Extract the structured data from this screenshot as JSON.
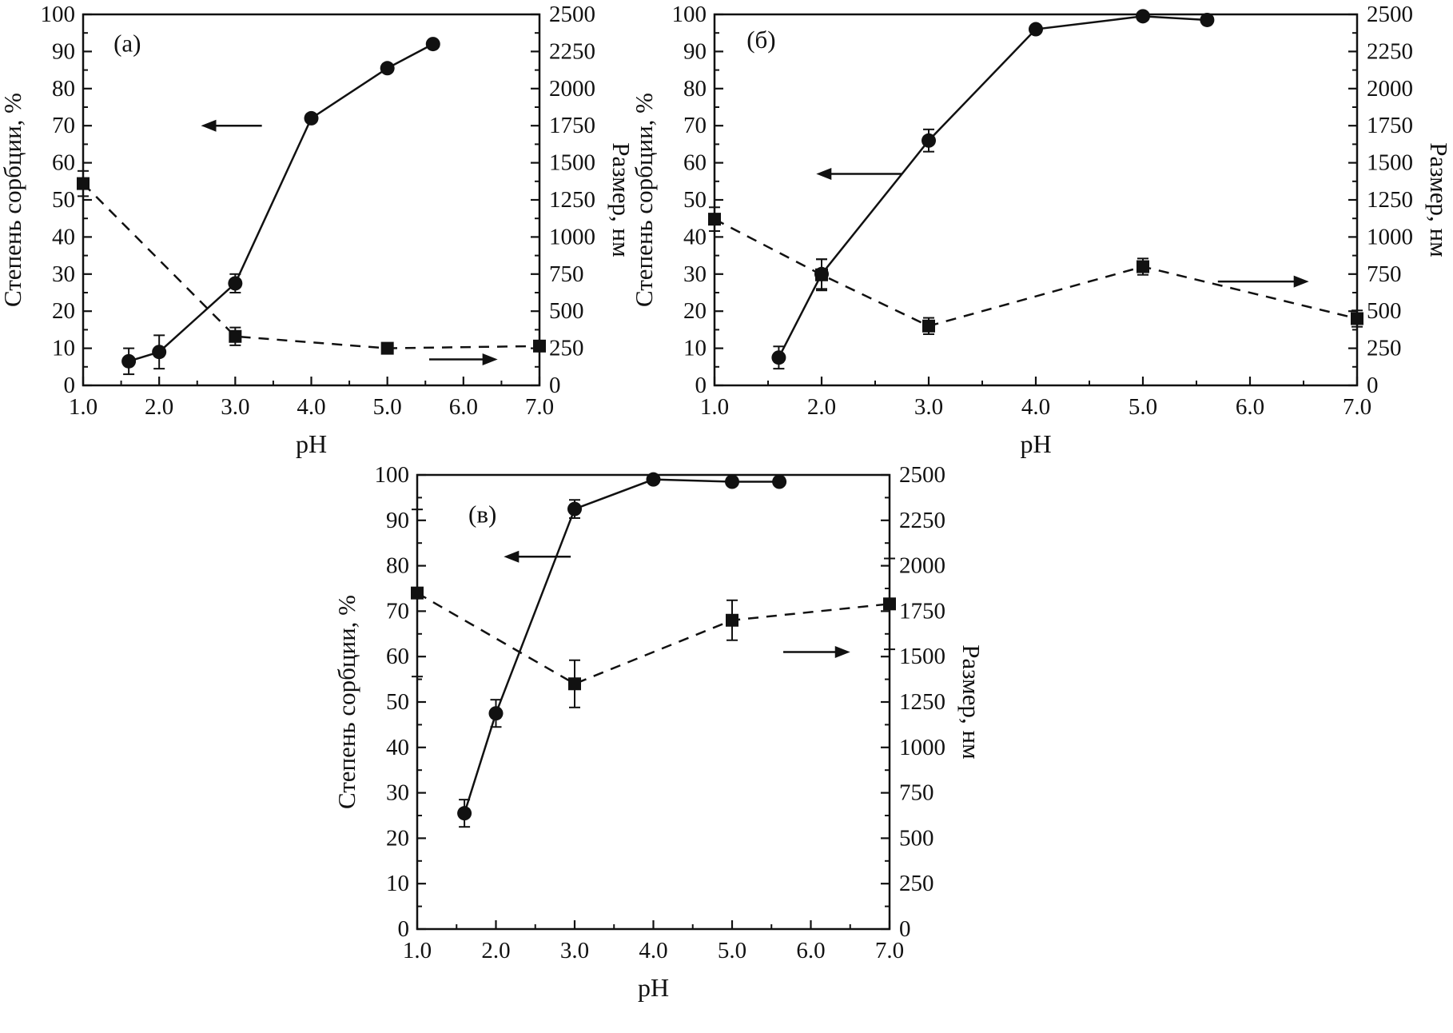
{
  "figure": {
    "background": "#ffffff",
    "ink": "#111111"
  },
  "chart_data": [
    {
      "id": "a",
      "type": "line",
      "panel_label": "(а)",
      "panel_label_pos": {
        "x": 1.4,
        "y": 90
      },
      "xlabel": "pH",
      "ylabel_left": "Степень сорбции, %",
      "ylabel_right": "Размер, нм",
      "xlim": [
        1.0,
        7.0
      ],
      "ylim_left": [
        0,
        100
      ],
      "ylim_right": [
        0,
        2500
      ],
      "grid": false,
      "xticks": {
        "values": [
          1,
          2,
          3,
          4,
          5,
          6,
          7
        ],
        "labels": [
          "1.0",
          "2.0",
          "3.0",
          "4.0",
          "5.0",
          "6.0",
          "7.0"
        ]
      },
      "yticks_left": {
        "values": [
          0,
          10,
          20,
          30,
          40,
          50,
          60,
          70,
          80,
          90,
          100
        ],
        "labels": [
          "0",
          "10",
          "20",
          "30",
          "40",
          "50",
          "60",
          "70",
          "80",
          "90",
          "100"
        ]
      },
      "yticks_right": {
        "values": [
          0,
          250,
          500,
          750,
          1000,
          1250,
          1500,
          1750,
          2000,
          2250,
          2500
        ],
        "labels": [
          "0",
          "250",
          "500",
          "750",
          "1000",
          "1250",
          "1500",
          "1750",
          "2000",
          "2250",
          "2500"
        ]
      },
      "series": [
        {
          "name": "particle-size",
          "axis": "right",
          "marker": "square",
          "line": "dashed",
          "x": [
            1.0,
            3.0,
            5.0,
            7.0
          ],
          "y": [
            1360,
            330,
            250,
            265
          ],
          "yerr": [
            85,
            60,
            30,
            30
          ]
        },
        {
          "name": "sorption-degree",
          "axis": "left",
          "marker": "circle",
          "line": "solid",
          "x": [
            1.6,
            2.0,
            3.0,
            4.0,
            5.0,
            5.6
          ],
          "y": [
            6.5,
            9,
            27.5,
            72,
            85.5,
            92
          ],
          "yerr": [
            3.5,
            4.5,
            2.5,
            0,
            0,
            0
          ]
        }
      ],
      "arrows": [
        {
          "name": "left-series-arrow",
          "x_tail": 3.35,
          "x_head": 2.55,
          "y": 70
        },
        {
          "name": "right-series-arrow",
          "x_tail": 5.55,
          "x_head": 6.45,
          "y": 7
        }
      ]
    },
    {
      "id": "b",
      "type": "line",
      "panel_label": "(б)",
      "panel_label_pos": {
        "x": 1.3,
        "y": 91
      },
      "xlabel": "pH",
      "ylabel_left": "Степень сорбции, %",
      "ylabel_right": "Размер, нм",
      "xlim": [
        1.0,
        7.0
      ],
      "ylim_left": [
        0,
        100
      ],
      "ylim_right": [
        0,
        2500
      ],
      "grid": false,
      "xticks": {
        "values": [
          1,
          2,
          3,
          4,
          5,
          6,
          7
        ],
        "labels": [
          "1.0",
          "2.0",
          "3.0",
          "4.0",
          "5.0",
          "6.0",
          "7.0"
        ]
      },
      "yticks_left": {
        "values": [
          0,
          10,
          20,
          30,
          40,
          50,
          60,
          70,
          80,
          90,
          100
        ],
        "labels": [
          "0",
          "10",
          "20",
          "30",
          "40",
          "50",
          "60",
          "70",
          "80",
          "90",
          "100"
        ]
      },
      "yticks_right": {
        "values": [
          0,
          250,
          500,
          750,
          1000,
          1250,
          1500,
          1750,
          2000,
          2250,
          2500
        ],
        "labels": [
          "0",
          "250",
          "500",
          "750",
          "1000",
          "1250",
          "1500",
          "1750",
          "2000",
          "2250",
          "2500"
        ]
      },
      "series": [
        {
          "name": "particle-size",
          "axis": "right",
          "marker": "square",
          "line": "dashed",
          "x": [
            1.0,
            2.0,
            3.0,
            5.0,
            7.0
          ],
          "y": [
            1120,
            745,
            400,
            800,
            450
          ],
          "yerr": [
            80,
            105,
            55,
            55,
            55
          ]
        },
        {
          "name": "sorption-degree",
          "axis": "left",
          "marker": "circle",
          "line": "solid",
          "x": [
            1.6,
            2.0,
            3.0,
            4.0,
            5.0,
            5.6
          ],
          "y": [
            7.5,
            30,
            66,
            96,
            99.5,
            98.5
          ],
          "yerr": [
            3,
            4,
            3,
            0,
            0,
            0
          ]
        }
      ],
      "arrows": [
        {
          "name": "left-series-arrow",
          "x_tail": 2.75,
          "x_head": 1.95,
          "y": 57
        },
        {
          "name": "right-series-arrow",
          "x_tail": 5.7,
          "x_head": 6.55,
          "y": 28
        }
      ]
    },
    {
      "id": "v",
      "type": "line",
      "panel_label": "(в)",
      "panel_label_pos": {
        "x": 1.65,
        "y": 89.5
      },
      "xlabel": "pH",
      "ylabel_left": "Степень сорбции, %",
      "ylabel_right": "Размер, нм",
      "xlim": [
        1.0,
        7.0
      ],
      "ylim_left": [
        0,
        100
      ],
      "ylim_right": [
        0,
        2500
      ],
      "grid": false,
      "xticks": {
        "values": [
          1,
          2,
          3,
          4,
          5,
          6,
          7
        ],
        "labels": [
          "1.0",
          "2.0",
          "3.0",
          "4.0",
          "5.0",
          "6.0",
          "7.0"
        ]
      },
      "yticks_left": {
        "values": [
          0,
          10,
          20,
          30,
          40,
          50,
          60,
          70,
          80,
          90,
          100
        ],
        "labels": [
          "0",
          "10",
          "20",
          "30",
          "40",
          "50",
          "60",
          "70",
          "80",
          "90",
          "100"
        ]
      },
      "yticks_right": {
        "values": [
          0,
          250,
          500,
          750,
          1000,
          1250,
          1500,
          1750,
          2000,
          2250,
          2500
        ],
        "labels": [
          "0",
          "250",
          "500",
          "750",
          "1000",
          "1250",
          "1500",
          "1750",
          "2000",
          "2250",
          "2500"
        ]
      },
      "series": [
        {
          "name": "particle-size",
          "axis": "right",
          "marker": "square",
          "line": "dashed",
          "x": [
            1.0,
            3.0,
            5.0,
            7.0
          ],
          "y": [
            1850,
            1350,
            1700,
            1790
          ],
          "yerr": [
            460,
            130,
            110,
            250
          ]
        },
        {
          "name": "sorption-degree",
          "axis": "left",
          "marker": "circle",
          "line": "solid",
          "x": [
            1.6,
            2.0,
            3.0,
            4.0,
            5.0,
            5.6
          ],
          "y": [
            25.5,
            47.5,
            92.5,
            99,
            98.5,
            98.5
          ],
          "yerr": [
            3,
            3,
            2,
            0,
            0,
            0
          ]
        }
      ],
      "arrows": [
        {
          "name": "left-series-arrow",
          "x_tail": 2.95,
          "x_head": 2.1,
          "y": 82
        },
        {
          "name": "right-series-arrow",
          "x_tail": 5.65,
          "x_head": 6.5,
          "y": 61
        }
      ]
    }
  ]
}
